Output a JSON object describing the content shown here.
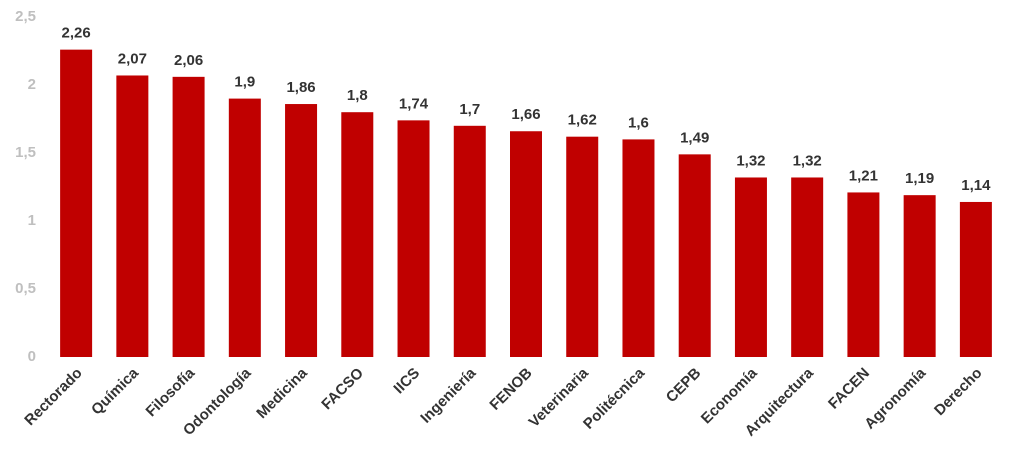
{
  "chart_data": {
    "type": "bar",
    "categories": [
      "Rectorado",
      "Química",
      "Filosofía",
      "Odontología",
      "Medicina",
      "FACSO",
      "IICS",
      "Ingeniería",
      "FENOB",
      "Veterinaria",
      "Politécnica",
      "CEPB",
      "Economía",
      "Arquitectura",
      "FACEN",
      "Agronomía",
      "Derecho"
    ],
    "values": [
      2.26,
      2.07,
      2.06,
      1.9,
      1.86,
      1.8,
      1.74,
      1.7,
      1.66,
      1.62,
      1.6,
      1.49,
      1.32,
      1.32,
      1.21,
      1.19,
      1.14
    ],
    "value_labels": [
      "2,26",
      "2,07",
      "2,06",
      "1,9",
      "1,86",
      "1,8",
      "1,74",
      "1,7",
      "1,66",
      "1,62",
      "1,6",
      "1,49",
      "1,32",
      "1,32",
      "1,21",
      "1,19",
      "1,14"
    ],
    "color": "#c00000",
    "ylim": [
      0,
      2.5
    ],
    "yticks": [
      0,
      {
        "value": 0.5,
        "label": "0,5"
      },
      1,
      {
        "value": 1.5,
        "label": "1,5"
      },
      2,
      {
        "value": 2.5,
        "label": "2,5"
      }
    ],
    "grid": false
  }
}
